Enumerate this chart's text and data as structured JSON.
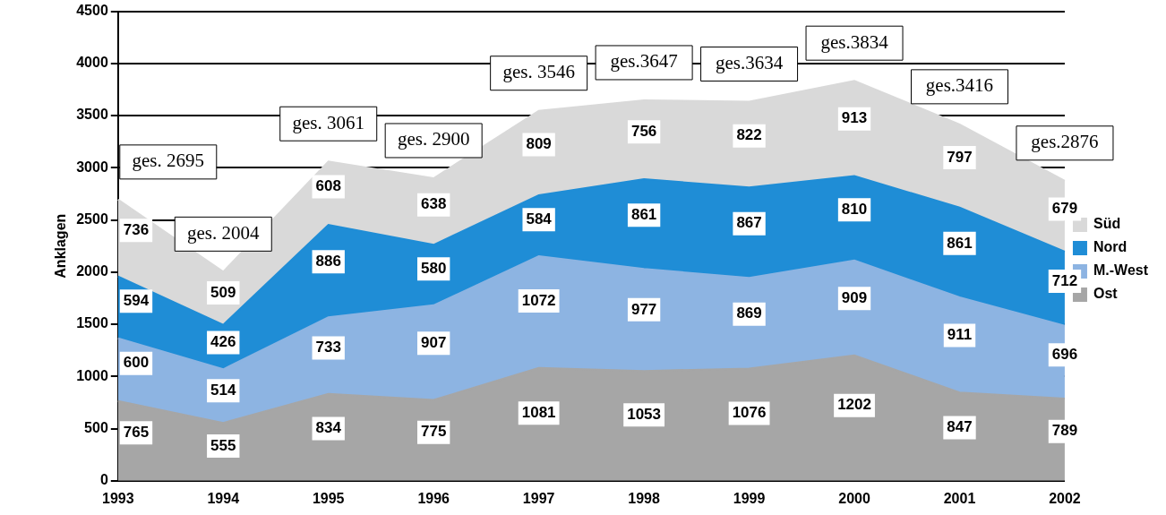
{
  "chart_data": {
    "type": "area",
    "stacked": true,
    "ylabel": "Anklagen",
    "categories": [
      "1993",
      "1994",
      "1995",
      "1996",
      "1997",
      "1998",
      "1999",
      "2000",
      "2001",
      "2002"
    ],
    "series": [
      {
        "name": "Ost",
        "color": "#a6a6a6",
        "values": [
          765,
          555,
          834,
          775,
          1081,
          1053,
          1076,
          1202,
          847,
          789
        ]
      },
      {
        "name": "M.-West",
        "color": "#8db4e2",
        "values": [
          600,
          514,
          733,
          907,
          1072,
          977,
          869,
          909,
          911,
          696
        ]
      },
      {
        "name": "Nord",
        "color": "#1f8dd6",
        "values": [
          594,
          426,
          886,
          580,
          584,
          861,
          867,
          810,
          861,
          712
        ]
      },
      {
        "name": "Süd",
        "color": "#d9d9d9",
        "values": [
          736,
          509,
          608,
          638,
          809,
          756,
          822,
          913,
          797,
          679
        ]
      }
    ],
    "totals": [
      "ges. 2695",
      "ges. 2004",
      "ges. 3061",
      "ges. 2900",
      "ges. 3546",
      "ges.3647",
      "ges.3634",
      "ges.3834",
      "ges.3416",
      "ges.2876"
    ],
    "ylim": [
      0,
      4500
    ],
    "yticks": [
      0,
      500,
      1000,
      1500,
      2000,
      2500,
      3000,
      3500,
      4000,
      4500
    ],
    "grid": "y",
    "legend": "right",
    "data_labels": true
  }
}
